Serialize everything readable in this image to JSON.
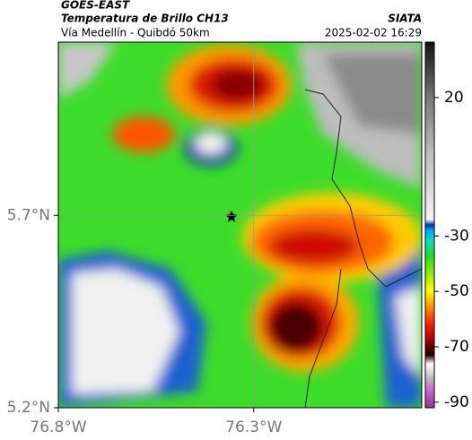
{
  "header": {
    "product": "GOES-EAST",
    "title": "Temperatura de Brillo CH13",
    "subtitle": "Vía Medellín - Quibdó 50km",
    "source": "SIATA",
    "datetime": "2025-02-02 16:29"
  },
  "map": {
    "xlim": [
      -76.8,
      -75.87
    ],
    "ylim": [
      5.2,
      6.15
    ],
    "xticks": [
      {
        "value": -76.8,
        "label": "76.8°W"
      },
      {
        "value": -76.3,
        "label": "76.3°W"
      }
    ],
    "yticks": [
      {
        "value": 5.2,
        "label": "5.2°N"
      },
      {
        "value": 5.7,
        "label": "5.7°N"
      }
    ],
    "grid": true
  },
  "colorbar": {
    "lim": [
      -92,
      40
    ],
    "ticks": [
      20,
      -30,
      -50,
      -70,
      -90
    ]
  }
}
